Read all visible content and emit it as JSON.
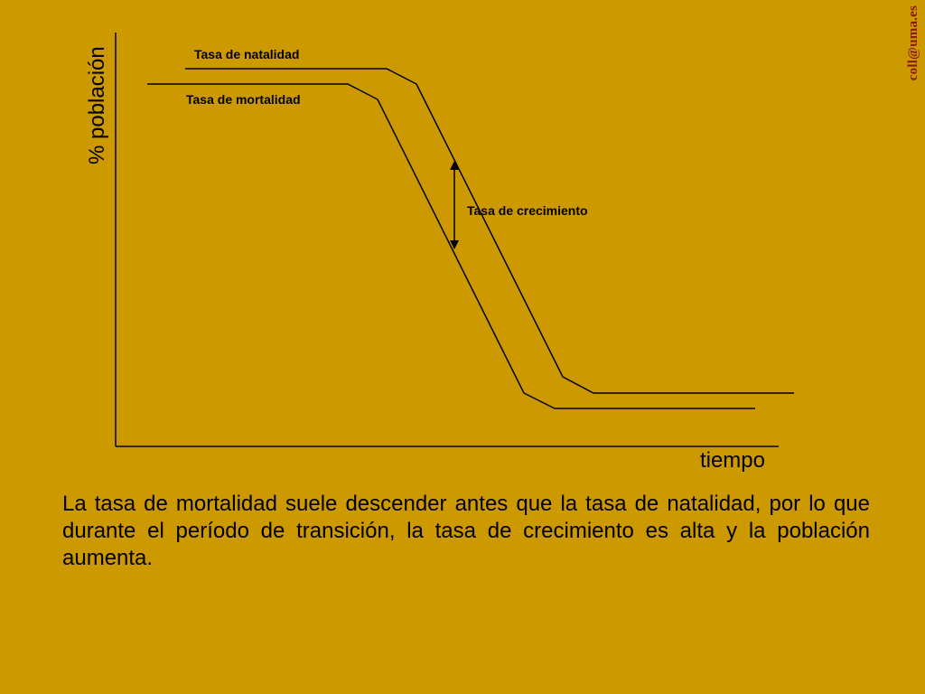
{
  "watermark": "coll@uma.es",
  "diagram": {
    "y_axis_label": "% población",
    "x_axis_label": "tiempo",
    "birth_rate_label": "Tasa de natalidad",
    "death_rate_label": "Tasa de mortalidad",
    "growth_rate_label": "Tasa de crecimiento"
  },
  "caption": "La tasa de mortalidad suele descender antes que la tasa de natalidad, por lo que durante el período de transición, la tasa de crecimiento es alta y la población aumenta."
}
